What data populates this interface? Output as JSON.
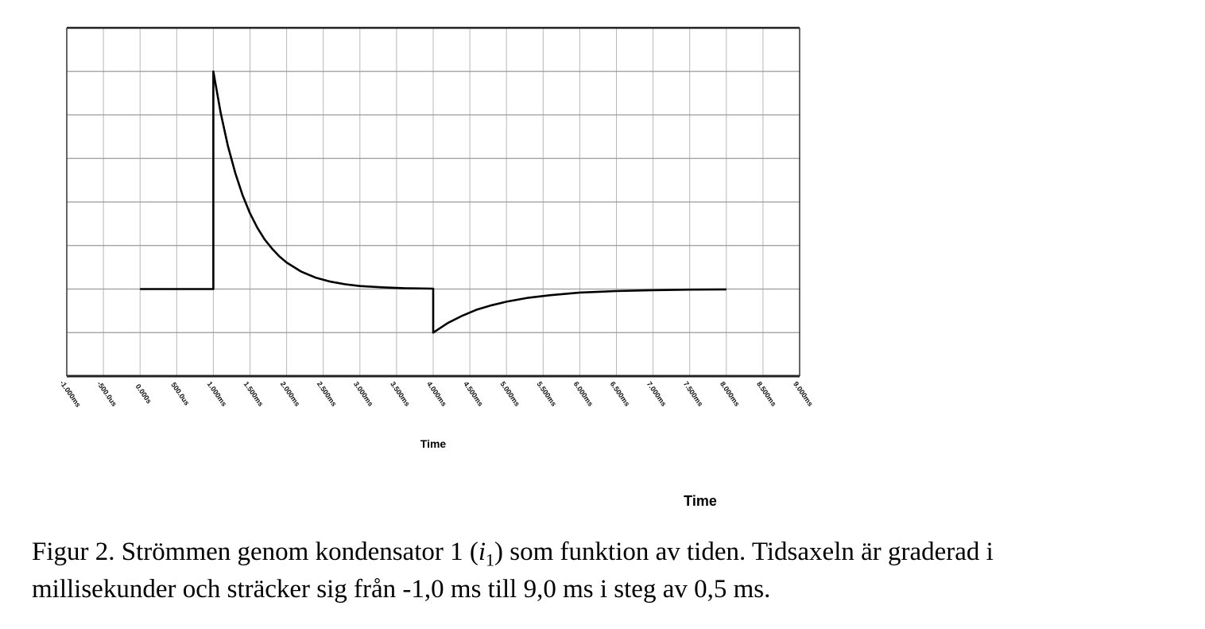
{
  "chart_data": {
    "type": "line",
    "title": "",
    "xlabel": "Time",
    "xlabel_secondary": "Time",
    "ylabel": "",
    "xlim": [
      -1.0,
      9.0
    ],
    "ylim": [
      -2,
      6
    ],
    "x_ticks": [
      -1.0,
      -0.5,
      0.0,
      0.5,
      1.0,
      1.5,
      2.0,
      2.5,
      3.0,
      3.5,
      4.0,
      4.5,
      5.0,
      5.5,
      6.0,
      6.5,
      7.0,
      7.5,
      8.0,
      8.5,
      9.0
    ],
    "x_tick_labels": [
      "-1.000ms",
      "-500.0us",
      "0.000s",
      "500.0us",
      "1.000ms",
      "1.500ms",
      "2.000ms",
      "2.500ms",
      "3.000ms",
      "3.500ms",
      "4.000ms",
      "4.500ms",
      "5.000ms",
      "5.500ms",
      "6.000ms",
      "6.500ms",
      "7.000ms",
      "7.500ms",
      "8.000ms",
      "8.500ms",
      "9.000ms"
    ],
    "y_gridlines": 8,
    "grid": true,
    "series": [
      {
        "color": "#000000",
        "points": [
          [
            0.0,
            0
          ],
          [
            1.0,
            0
          ],
          [
            1.0,
            5.0
          ],
          [
            1.1,
            4.05
          ],
          [
            1.2,
            3.28
          ],
          [
            1.3,
            2.66
          ],
          [
            1.4,
            2.15
          ],
          [
            1.5,
            1.74
          ],
          [
            1.6,
            1.41
          ],
          [
            1.7,
            1.14
          ],
          [
            1.8,
            0.93
          ],
          [
            1.9,
            0.75
          ],
          [
            2.0,
            0.61
          ],
          [
            2.2,
            0.4
          ],
          [
            2.4,
            0.26
          ],
          [
            2.6,
            0.17
          ],
          [
            2.8,
            0.11
          ],
          [
            3.0,
            0.07
          ],
          [
            3.3,
            0.04
          ],
          [
            3.6,
            0.02
          ],
          [
            4.0,
            0.01
          ],
          [
            4.0,
            -1.0
          ],
          [
            4.2,
            -0.78
          ],
          [
            4.4,
            -0.61
          ],
          [
            4.6,
            -0.47
          ],
          [
            4.8,
            -0.37
          ],
          [
            5.0,
            -0.29
          ],
          [
            5.3,
            -0.2
          ],
          [
            5.6,
            -0.14
          ],
          [
            6.0,
            -0.08
          ],
          [
            6.5,
            -0.045
          ],
          [
            7.0,
            -0.025
          ],
          [
            7.5,
            -0.013
          ],
          [
            8.0,
            -0.007
          ]
        ]
      }
    ]
  },
  "caption": {
    "prefix": "Figur 2. Strömmen genom kondensator 1 (",
    "symbol": "i",
    "symbol_sub": "1",
    "suffix": ") som funktion av tiden. Tidsaxeln är graderad i",
    "line2": "millisekunder och sträcker sig från -1,0 ms till 9,0 ms i steg av 0,5 ms."
  }
}
